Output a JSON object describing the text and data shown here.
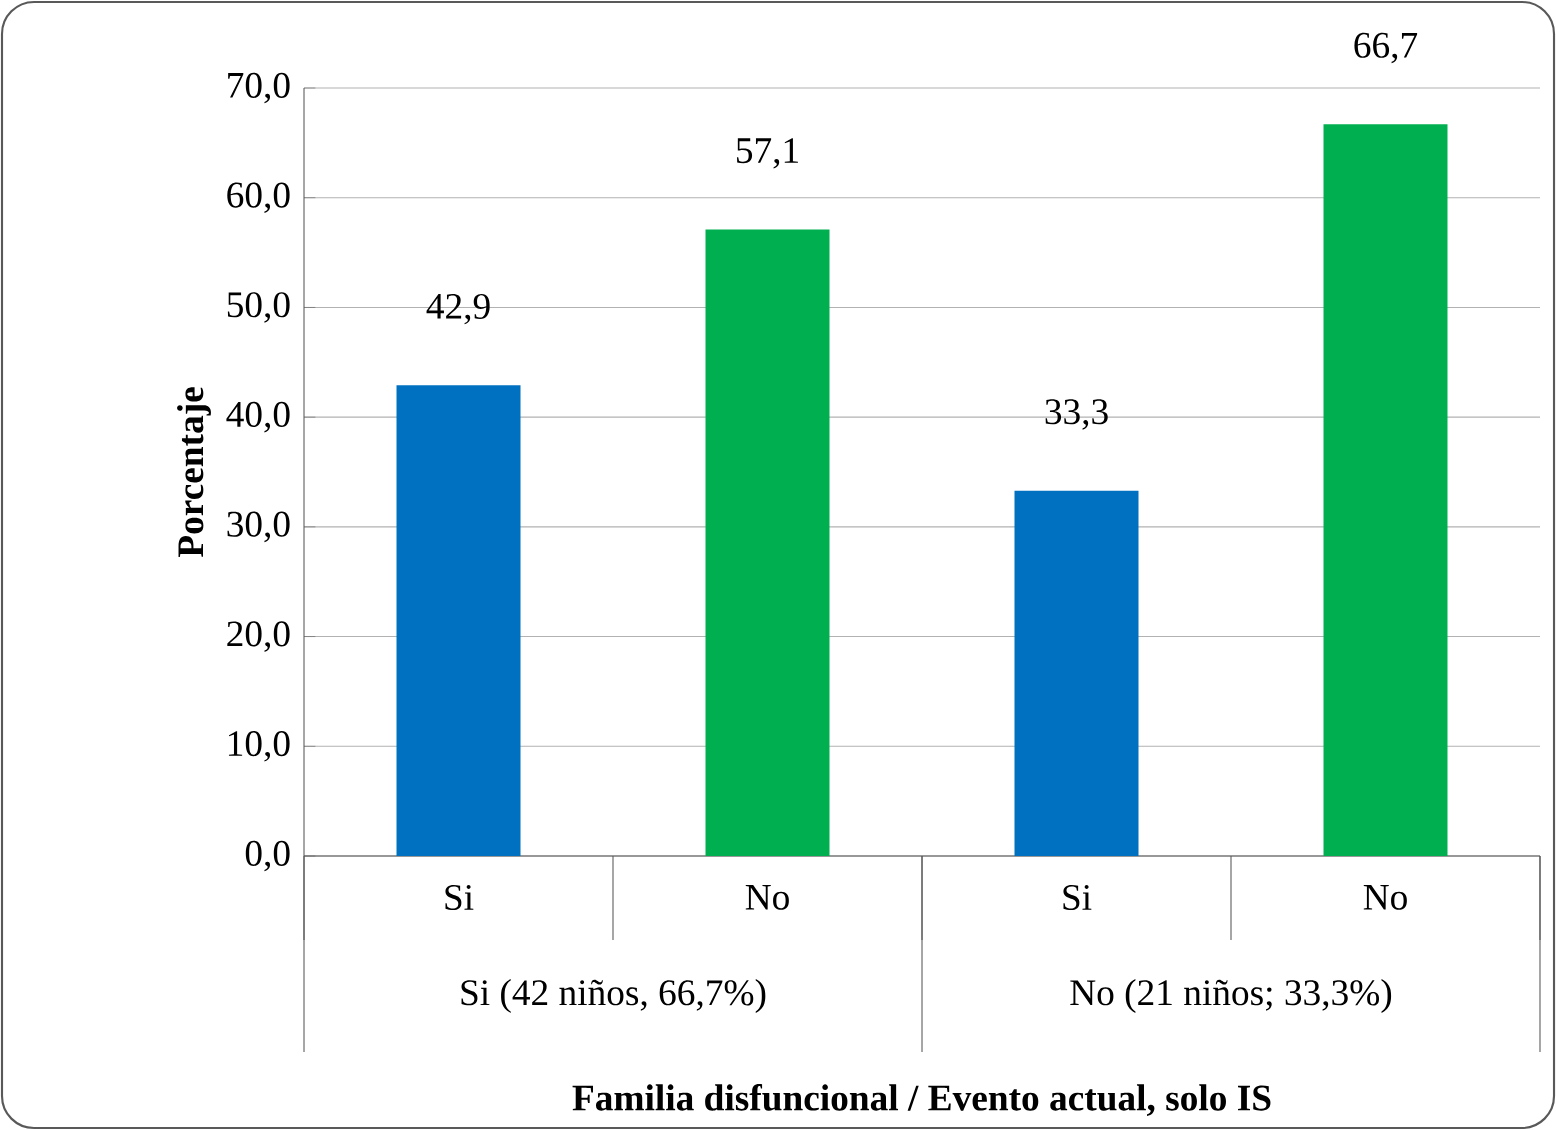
{
  "chart_data": {
    "type": "bar",
    "xlabel": "Familia disfuncional / Evento actual, solo IS",
    "ylabel": "Porcentaje",
    "categories": [
      "Si",
      "No",
      "Si",
      "No"
    ],
    "values": [
      42.9,
      57.1,
      33.3,
      66.7
    ],
    "colors": [
      "#0070c0",
      "#00b050",
      "#0070c0",
      "#00b050"
    ],
    "value_labels": [
      "42,9",
      "57,1",
      "33,3",
      "66,7"
    ],
    "annotations": [
      "Si (42 niños, 66,7%)",
      "No (21 niños; 33,3%)"
    ],
    "ylim": [
      0,
      70
    ],
    "yticks": [
      {
        "value": 0,
        "label": "0,0"
      },
      {
        "value": 10,
        "label": "10,0"
      },
      {
        "value": 20,
        "label": "20,0"
      },
      {
        "value": 30,
        "label": "30,0"
      },
      {
        "value": 40,
        "label": "40,0"
      },
      {
        "value": 50,
        "label": "50,0"
      },
      {
        "value": 60,
        "label": "60,0"
      },
      {
        "value": 70,
        "label": "70,0"
      }
    ],
    "grid": "y"
  }
}
